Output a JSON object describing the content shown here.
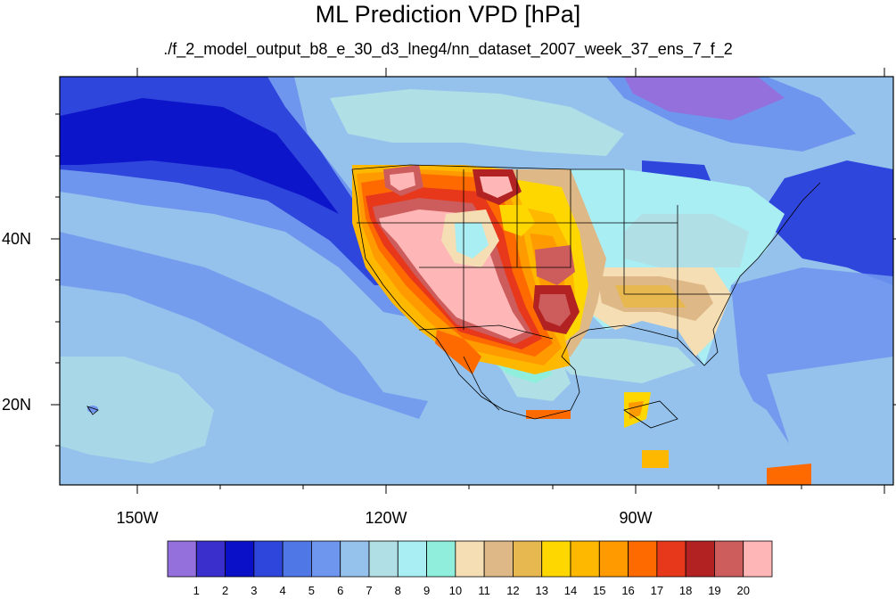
{
  "title": "ML Prediction VPD [hPa]",
  "subtitle": "./f_2_model_output_b8_e_30_d3_lneg4/nn_dataset_2007_week_37_ens_7_f_2",
  "map": {
    "projection": "cylindrical equidistant",
    "region": "North America and eastern Pacific",
    "lon_range": [
      -160,
      -60
    ],
    "lat_range": [
      10,
      59
    ],
    "x_ticks": [
      "150W",
      "120W",
      "90W"
    ],
    "y_ticks": [
      "40N",
      "20N"
    ]
  },
  "colorbar": {
    "labels": [
      "1",
      "2",
      "3",
      "4",
      "5",
      "6",
      "7",
      "8",
      "9",
      "10",
      "11",
      "12",
      "13",
      "14",
      "15",
      "16",
      "17",
      "18",
      "19",
      "20"
    ],
    "colors": [
      "#9370db",
      "#3a2fcc",
      "#0a10c8",
      "#2e46dc",
      "#4f78e6",
      "#6f96ee",
      "#94c2ec",
      "#b0e0e6",
      "#a8eef2",
      "#90eedc",
      "#f5deb3",
      "#deb887",
      "#e8b850",
      "#ffd700",
      "#ffb800",
      "#ff9a00",
      "#ff6a00",
      "#e8381c",
      "#b22222",
      "#cd5c5c",
      "#ffb6b6"
    ]
  }
}
